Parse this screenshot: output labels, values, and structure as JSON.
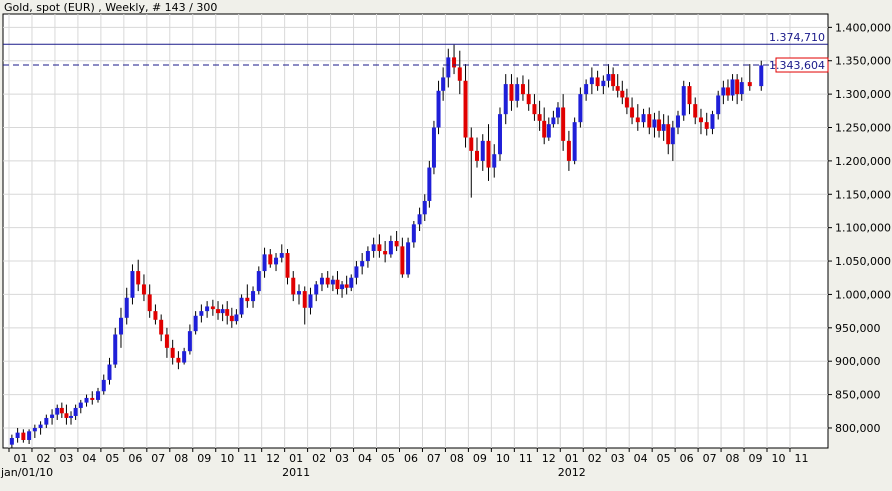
{
  "title": "Gold, spot (EUR) , Weekly, # 143 / 300",
  "colors": {
    "background": "#f0f0ea",
    "plot_background": "#ffffff",
    "grid": "#d8d8d8",
    "up_candle": "#1f1fd8",
    "down_candle": "#e00000",
    "wick": "#000000",
    "resistance_line": "#1a1a8a",
    "current_line": "#1a1a8a",
    "current_box_border": "#e00000",
    "axis_text": "#000000"
  },
  "chart_data": {
    "type": "candlestick",
    "title": "Gold, spot (EUR) , Weekly, # 143 / 300",
    "xlabel": "",
    "ylabel": "",
    "ylim": [
      770000,
      1420000
    ],
    "grid": true,
    "y_ticks": [
      "800,000",
      "850,000",
      "900,000",
      "950,000",
      "1.000,000",
      "1.050,000",
      "1.100,000",
      "1.150,000",
      "1.200,000",
      "1.250,000",
      "1.300,000",
      "1.350,000",
      "1.400,000"
    ],
    "y_tick_values": [
      800000,
      850000,
      900000,
      950000,
      1000000,
      1050000,
      1100000,
      1150000,
      1200000,
      1250000,
      1300000,
      1350000,
      1400000
    ],
    "x_tick_labels": [
      "01",
      "02",
      "03",
      "04",
      "05",
      "06",
      "07",
      "08",
      "09",
      "10",
      "11",
      "12",
      "01",
      "02",
      "03",
      "04",
      "05",
      "06",
      "07",
      "08",
      "09",
      "10",
      "11",
      "12",
      "01",
      "02",
      "03",
      "04",
      "05",
      "06",
      "07",
      "08",
      "09",
      "10",
      "11"
    ],
    "x_year_labels": [
      {
        "text": "jan/01/10",
        "index": 0
      },
      {
        "text": "2011",
        "index": 12
      },
      {
        "text": "2012",
        "index": 24
      }
    ],
    "horizontal_lines": [
      {
        "label": "1.374,710",
        "value": 1374710,
        "style": "solid"
      },
      {
        "label": "1.343,604",
        "value": 1343604,
        "style": "dashed",
        "boxed": true
      }
    ],
    "candles_start": "2010-01",
    "months": [
      [
        [
          775,
          790,
          770,
          785
        ],
        [
          785,
          800,
          778,
          793
        ],
        [
          793,
          798,
          778,
          782
        ],
        [
          782,
          798,
          776,
          795
        ]
      ],
      [
        [
          795,
          805,
          785,
          800
        ],
        [
          800,
          810,
          790,
          805
        ],
        [
          805,
          820,
          800,
          815
        ],
        [
          815,
          828,
          805,
          820
        ]
      ],
      [
        [
          820,
          835,
          812,
          830
        ],
        [
          830,
          838,
          815,
          822
        ],
        [
          822,
          835,
          805,
          815
        ],
        [
          815,
          825,
          805,
          818
        ],
        [
          818,
          835,
          812,
          830
        ]
      ],
      [
        [
          830,
          842,
          822,
          838
        ],
        [
          838,
          850,
          832,
          845
        ],
        [
          845,
          855,
          835,
          842
        ],
        [
          842,
          860,
          838,
          855
        ]
      ],
      [
        [
          855,
          880,
          850,
          872
        ],
        [
          872,
          905,
          865,
          895
        ],
        [
          895,
          950,
          890,
          940
        ],
        [
          940,
          980,
          920,
          965
        ]
      ],
      [
        [
          965,
          1010,
          955,
          995
        ],
        [
          995,
          1045,
          985,
          1035
        ],
        [
          1035,
          1052,
          1005,
          1015
        ],
        [
          1015,
          1030,
          990,
          1000
        ]
      ],
      [
        [
          1000,
          1015,
          965,
          975
        ],
        [
          975,
          985,
          955,
          962
        ],
        [
          962,
          970,
          930,
          940
        ],
        [
          940,
          950,
          905,
          920
        ]
      ],
      [
        [
          920,
          932,
          895,
          905
        ],
        [
          905,
          915,
          888,
          898
        ],
        [
          898,
          920,
          895,
          915
        ],
        [
          915,
          955,
          910,
          945
        ]
      ],
      [
        [
          945,
          975,
          940,
          968
        ],
        [
          968,
          985,
          958,
          975
        ],
        [
          975,
          990,
          965,
          982
        ],
        [
          982,
          992,
          968,
          978
        ]
      ],
      [
        [
          978,
          990,
          962,
          972
        ],
        [
          972,
          985,
          960,
          978
        ],
        [
          978,
          990,
          955,
          968
        ],
        [
          968,
          980,
          950,
          960
        ],
        [
          960,
          978,
          955,
          970
        ]
      ],
      [
        [
          970,
          1000,
          965,
          995
        ],
        [
          995,
          1015,
          980,
          990
        ],
        [
          990,
          1012,
          980,
          1005
        ],
        [
          1005,
          1042,
          1000,
          1035
        ]
      ],
      [
        [
          1035,
          1070,
          1025,
          1060
        ],
        [
          1060,
          1068,
          1040,
          1045
        ],
        [
          1045,
          1062,
          1035,
          1055
        ],
        [
          1055,
          1075,
          1048,
          1062
        ]
      ],
      [
        [
          1062,
          1068,
          1015,
          1025
        ],
        [
          1025,
          1035,
          990,
          1000
        ],
        [
          1000,
          1015,
          985,
          1005
        ],
        [
          1005,
          1012,
          955,
          980
        ]
      ],
      [
        [
          980,
          1010,
          970,
          1000
        ],
        [
          1000,
          1020,
          990,
          1015
        ],
        [
          1015,
          1032,
          1005,
          1025
        ],
        [
          1025,
          1035,
          1010,
          1015
        ]
      ],
      [
        [
          1015,
          1028,
          1005,
          1022
        ],
        [
          1022,
          1035,
          1000,
          1008
        ],
        [
          1008,
          1020,
          995,
          1015
        ],
        [
          1015,
          1028,
          1000,
          1010
        ],
        [
          1010,
          1030,
          1005,
          1025
        ]
      ],
      [
        [
          1025,
          1050,
          1015,
          1042
        ],
        [
          1042,
          1062,
          1030,
          1050
        ],
        [
          1050,
          1072,
          1040,
          1065
        ],
        [
          1065,
          1085,
          1055,
          1075
        ]
      ],
      [
        [
          1075,
          1090,
          1055,
          1065
        ],
        [
          1065,
          1080,
          1048,
          1060
        ],
        [
          1060,
          1088,
          1055,
          1080
        ],
        [
          1080,
          1095,
          1065,
          1072
        ]
      ],
      [
        [
          1072,
          1085,
          1025,
          1030
        ],
        [
          1030,
          1085,
          1025,
          1078
        ],
        [
          1078,
          1110,
          1070,
          1105
        ],
        [
          1105,
          1130,
          1095,
          1120
        ]
      ],
      [
        [
          1120,
          1150,
          1110,
          1140
        ],
        [
          1140,
          1200,
          1130,
          1190
        ],
        [
          1190,
          1260,
          1180,
          1250
        ],
        [
          1250,
          1320,
          1240,
          1305
        ],
        [
          1305,
          1340,
          1290,
          1325
        ]
      ],
      [
        [
          1325,
          1368,
          1310,
          1355
        ],
        [
          1355,
          1374,
          1330,
          1340
        ],
        [
          1340,
          1365,
          1300,
          1320
        ],
        [
          1320,
          1345,
          1220,
          1235
        ]
      ],
      [
        [
          1235,
          1250,
          1145,
          1215
        ],
        [
          1215,
          1235,
          1190,
          1200
        ],
        [
          1200,
          1240,
          1185,
          1230
        ],
        [
          1230,
          1255,
          1170,
          1190
        ]
      ],
      [
        [
          1190,
          1225,
          1175,
          1210
        ],
        [
          1210,
          1280,
          1200,
          1270
        ],
        [
          1270,
          1330,
          1255,
          1315
        ],
        [
          1315,
          1330,
          1275,
          1290
        ]
      ],
      [
        [
          1290,
          1325,
          1280,
          1315
        ],
        [
          1315,
          1328,
          1290,
          1300
        ],
        [
          1300,
          1322,
          1275,
          1285
        ],
        [
          1285,
          1300,
          1260,
          1270
        ]
      ],
      [
        [
          1270,
          1290,
          1245,
          1260
        ],
        [
          1260,
          1280,
          1225,
          1235
        ],
        [
          1235,
          1265,
          1230,
          1255
        ],
        [
          1255,
          1275,
          1250,
          1265
        ],
        [
          1265,
          1288,
          1255,
          1280
        ]
      ],
      [
        [
          1280,
          1300,
          1215,
          1230
        ],
        [
          1230,
          1245,
          1185,
          1200
        ],
        [
          1200,
          1265,
          1195,
          1258
        ],
        [
          1258,
          1310,
          1250,
          1300
        ]
      ],
      [
        [
          1300,
          1322,
          1290,
          1315
        ],
        [
          1315,
          1340,
          1300,
          1325
        ],
        [
          1325,
          1335,
          1305,
          1312
        ],
        [
          1312,
          1328,
          1300,
          1320
        ]
      ],
      [
        [
          1320,
          1345,
          1310,
          1330
        ],
        [
          1330,
          1340,
          1305,
          1312
        ],
        [
          1312,
          1330,
          1295,
          1305
        ],
        [
          1305,
          1320,
          1285,
          1295
        ],
        [
          1295,
          1308,
          1270,
          1280
        ]
      ],
      [
        [
          1280,
          1295,
          1255,
          1265
        ],
        [
          1265,
          1285,
          1245,
          1258
        ],
        [
          1258,
          1278,
          1250,
          1270
        ],
        [
          1270,
          1280,
          1240,
          1250
        ]
      ],
      [
        [
          1250,
          1272,
          1235,
          1262
        ],
        [
          1262,
          1275,
          1235,
          1245
        ],
        [
          1245,
          1270,
          1230,
          1255
        ],
        [
          1255,
          1268,
          1210,
          1225
        ],
        [
          1225,
          1260,
          1200,
          1250
        ]
      ],
      [
        [
          1250,
          1275,
          1240,
          1268
        ],
        [
          1268,
          1320,
          1260,
          1312
        ],
        [
          1312,
          1318,
          1270,
          1285
        ],
        [
          1285,
          1295,
          1255,
          1265
        ]
      ],
      [
        [
          1265,
          1278,
          1240,
          1258
        ],
        [
          1258,
          1272,
          1238,
          1248
        ],
        [
          1248,
          1275,
          1240,
          1270
        ],
        [
          1270,
          1305,
          1262,
          1298
        ]
      ],
      [
        [
          1298,
          1320,
          1285,
          1310
        ],
        [
          1310,
          1322,
          1290,
          1298
        ],
        [
          1298,
          1330,
          1290,
          1322
        ],
        [
          1322,
          1330,
          1285,
          1300
        ],
        [
          1300,
          1325,
          1290,
          1318
        ]
      ],
      [
        [
          1318,
          1345,
          1305,
          1312
        ],
        [
          1312,
          1350,
          1305,
          1343
        ]
      ]
    ]
  }
}
